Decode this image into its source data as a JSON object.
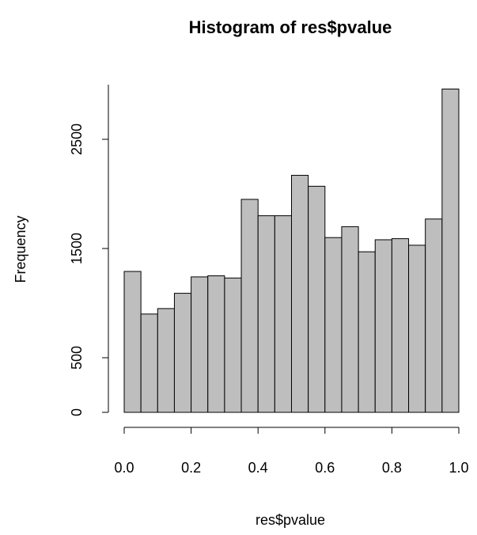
{
  "chart_data": {
    "type": "histogram",
    "title": "Histogram of res$pvalue",
    "x_label": "res$pvalue",
    "y_label": "Frequency",
    "bins": [
      0,
      0.05,
      0.1,
      0.15,
      0.2,
      0.25,
      0.3,
      0.35,
      0.4,
      0.45,
      0.5,
      0.55,
      0.6,
      0.65,
      0.7,
      0.75,
      0.8,
      0.85,
      0.9,
      0.95,
      1.0
    ],
    "values": [
      1290,
      900,
      950,
      1090,
      1240,
      1250,
      1230,
      1950,
      1800,
      1800,
      2170,
      2070,
      1600,
      1700,
      1470,
      1580,
      1590,
      1530,
      1770,
      2960
    ],
    "color": "#bebebe",
    "xlim": [
      0,
      1
    ],
    "xticks": [
      {
        "value": 0,
        "label": "0.0"
      },
      0.2,
      0.4,
      0.6,
      0.8,
      {
        "value": 1,
        "label": "1.0"
      }
    ],
    "ylim": [
      0,
      3000
    ],
    "yticks": [
      0,
      500,
      1500,
      2500
    ]
  }
}
